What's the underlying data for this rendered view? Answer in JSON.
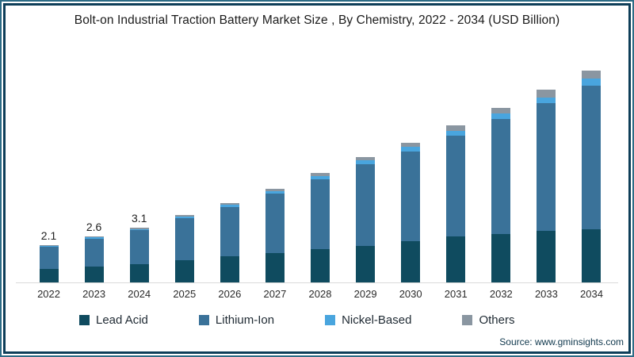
{
  "title": "Bolt-on Industrial Traction Battery Market Size , By Chemistry, 2022 - 2034  (USD Billion)",
  "source": "Source: www.gminsights.com",
  "legend": [
    {
      "label": "Lead Acid",
      "color": "#0f4b5f"
    },
    {
      "label": "Lithium-Ion",
      "color": "#3a7299"
    },
    {
      "label": "Nickel-Based",
      "color": "#49a5de"
    },
    {
      "label": "Others",
      "color": "#8a96a1"
    }
  ],
  "colors": {
    "lead_acid": "#0f4b5f",
    "lithium_ion": "#3a7299",
    "nickel_based": "#49a5de",
    "others": "#8a96a1",
    "frame_border": "#0e3e59",
    "axis_line": "#d9d9d9"
  },
  "chart_data": {
    "type": "bar",
    "stacked": true,
    "title": "Bolt-on Industrial Traction Battery Market Size , By Chemistry, 2022 - 2034 (USD Billion)",
    "unit": "USD Billion",
    "categories": [
      "2022",
      "2023",
      "2024",
      "2025",
      "2026",
      "2027",
      "2028",
      "2029",
      "2030",
      "2031",
      "2032",
      "2033",
      "2034"
    ],
    "series": [
      {
        "name": "Lead Acid",
        "color": "#0f4b5f",
        "values": [
          0.75,
          0.9,
          1.05,
          1.25,
          1.5,
          1.65,
          1.9,
          2.05,
          2.35,
          2.6,
          2.75,
          2.9,
          3.0
        ]
      },
      {
        "name": "Lithium-Ion",
        "color": "#3a7299",
        "values": [
          1.26,
          1.59,
          1.9,
          2.37,
          2.78,
          3.38,
          3.96,
          4.65,
          5.08,
          5.7,
          6.5,
          7.25,
          8.15
        ]
      },
      {
        "name": "Nickel-Based",
        "color": "#49a5de",
        "values": [
          0.05,
          0.06,
          0.08,
          0.1,
          0.12,
          0.15,
          0.18,
          0.2,
          0.25,
          0.3,
          0.3,
          0.33,
          0.4
        ]
      },
      {
        "name": "Others",
        "color": "#8a96a1",
        "values": [
          0.04,
          0.05,
          0.07,
          0.08,
          0.1,
          0.12,
          0.16,
          0.2,
          0.22,
          0.3,
          0.35,
          0.42,
          0.45
        ]
      }
    ],
    "totals": [
      2.1,
      2.6,
      3.1,
      3.8,
      4.5,
      5.3,
      6.2,
      7.1,
      7.9,
      8.9,
      9.9,
      10.9,
      12.0
    ],
    "bar_labels": [
      "2.1",
      "2.6",
      "3.1",
      "",
      "",
      "",
      "",
      "",
      "",
      "",
      "",
      "",
      ""
    ],
    "xlabel": "",
    "ylabel": "",
    "ylim": [
      0,
      13.3
    ],
    "grid": false,
    "y_axis_visible": false,
    "legend_position": "bottom"
  }
}
